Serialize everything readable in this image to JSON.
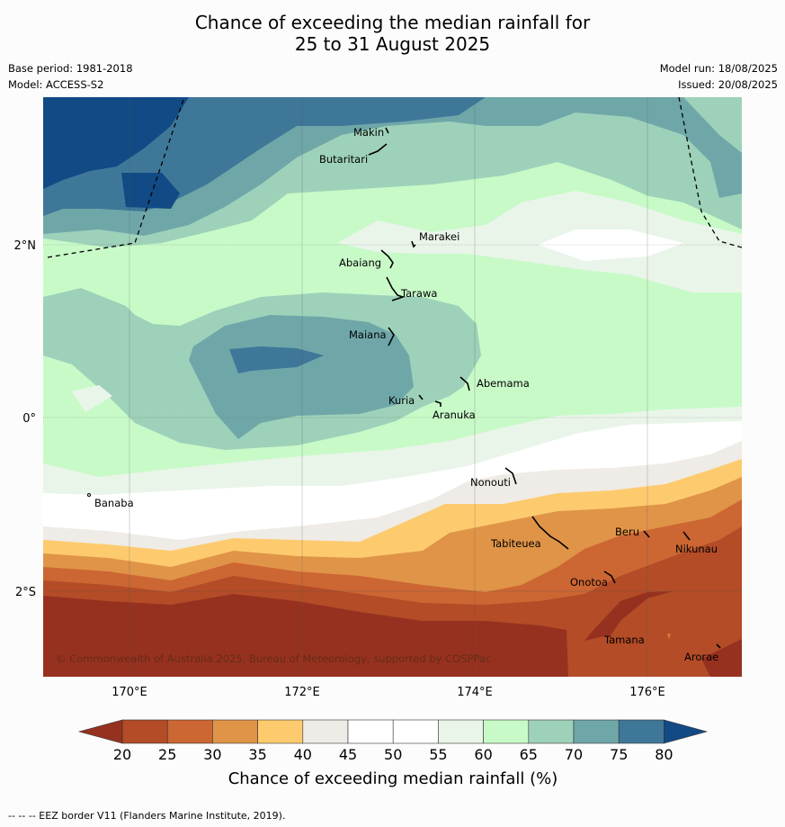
{
  "title_line1": "Chance of exceeding the median rainfall for",
  "title_line2": "25 to 31 August 2025",
  "base_period": "Base period: 1981-2018",
  "model": "Model: ACCESS-S2",
  "model_run": "Model run: 18/08/2025",
  "issued": "Issued: 20/08/2025",
  "lat_labels": [
    "2°N",
    "0°",
    "2°S"
  ],
  "lon_labels": [
    "170°E",
    "172°E",
    "174°E",
    "176°E"
  ],
  "places": [
    "Makin",
    "Butaritari",
    "Marakei",
    "Abaiang",
    "Tarawa",
    "Maiana",
    "Abemama",
    "Kuria",
    "Aranuka",
    "Nonouti",
    "Banaba",
    "Tabiteuea",
    "Beru",
    "Nikunau",
    "Onotoa",
    "Tamana",
    "Arorae"
  ],
  "copyright": "© Commonwealth of Australia 2025, Bureau of Meteorology, supported by COSPPac",
  "colorbar": {
    "ticks": [
      "20",
      "25",
      "30",
      "35",
      "40",
      "45",
      "50",
      "55",
      "60",
      "65",
      "70",
      "75",
      "80"
    ],
    "colors": [
      "#b34c27",
      "#cc6633",
      "#e09448",
      "#fdcb6e",
      "#efebe6",
      "#ffffff",
      "#ffffff",
      "#eaf5ea",
      "#c8fac8",
      "#9ed1b9",
      "#6fa7a9",
      "#3f7799"
    ],
    "low_color": "#97311f",
    "high_color": "#124a85",
    "label": "Chance of exceeding median rainfall (%)"
  },
  "footer": "--  --  -- EEZ border V11 (Flanders Marine Institute, 2019)."
}
